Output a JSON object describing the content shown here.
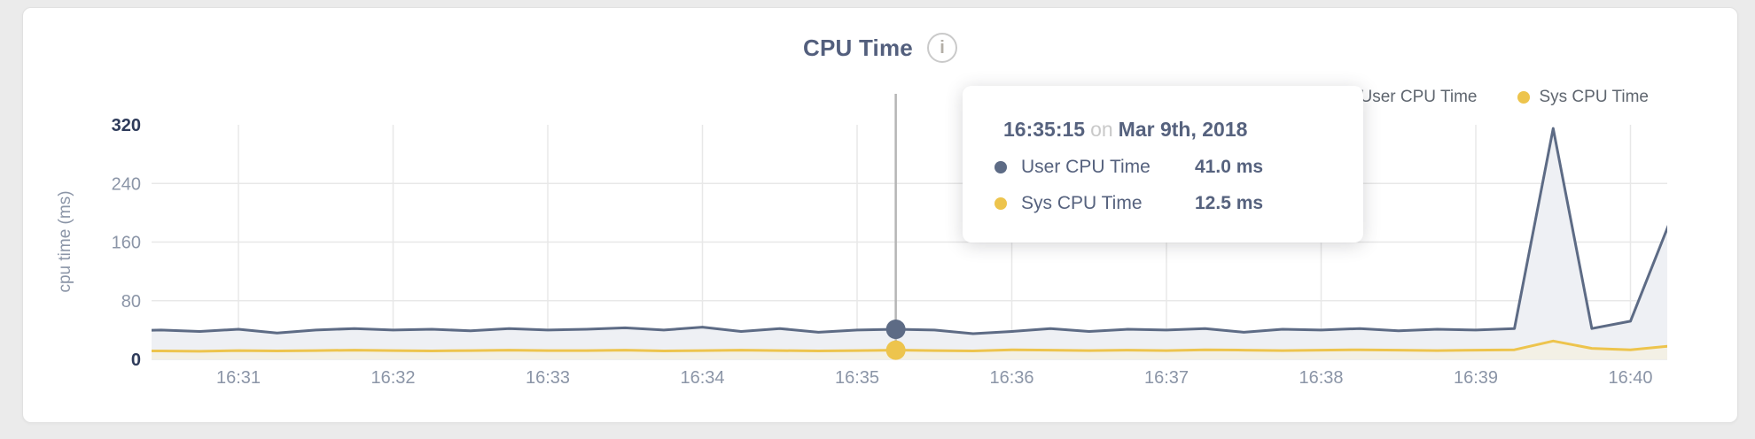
{
  "header": {
    "title": "CPU Time",
    "info_icon": "i"
  },
  "legend": {
    "items": [
      {
        "label": "User CPU Time",
        "color": "#5d6b85"
      },
      {
        "label": "Sys CPU Time",
        "color": "#edc44d"
      }
    ]
  },
  "tooltip": {
    "time": "16:35:15",
    "connector": "on",
    "date": "Mar 9th, 2018",
    "rows": [
      {
        "label": "User CPU Time",
        "value": "41.0 ms",
        "color": "#5d6b85"
      },
      {
        "label": "Sys CPU Time",
        "value": "12.5 ms",
        "color": "#edc44d"
      }
    ]
  },
  "chart_data": {
    "type": "area",
    "title": "CPU Time",
    "xlabel": "",
    "ylabel": "cpu time (ms)",
    "ylim": [
      0,
      320
    ],
    "y_ticks": [
      0,
      80,
      160,
      240,
      320
    ],
    "x_ticks": [
      "16:31",
      "16:32",
      "16:33",
      "16:34",
      "16:35",
      "16:36",
      "16:37",
      "16:38",
      "16:39",
      "16:40"
    ],
    "grid": true,
    "legend_position": "top-right",
    "x": [
      "16:30:15",
      "16:30:30",
      "16:30:45",
      "16:31:00",
      "16:31:15",
      "16:31:30",
      "16:31:45",
      "16:32:00",
      "16:32:15",
      "16:32:30",
      "16:32:45",
      "16:33:00",
      "16:33:15",
      "16:33:30",
      "16:33:45",
      "16:34:00",
      "16:34:15",
      "16:34:30",
      "16:34:45",
      "16:35:00",
      "16:35:15",
      "16:35:30",
      "16:35:45",
      "16:36:00",
      "16:36:15",
      "16:36:30",
      "16:36:45",
      "16:37:00",
      "16:37:15",
      "16:37:30",
      "16:37:45",
      "16:38:00",
      "16:38:15",
      "16:38:30",
      "16:38:45",
      "16:39:00",
      "16:39:15",
      "16:39:30",
      "16:39:45",
      "16:40:00",
      "16:40:15"
    ],
    "series": [
      {
        "name": "User CPU Time",
        "color": "#5d6b85",
        "fill": "#eef0f4",
        "values": [
          39,
          40,
          38,
          41,
          36,
          40,
          42,
          40,
          41,
          39,
          42,
          40,
          41,
          43,
          40,
          44,
          38,
          42,
          37,
          40,
          41,
          40,
          35,
          38,
          42,
          38,
          41,
          40,
          42,
          37,
          41,
          40,
          42,
          39,
          41,
          40,
          42,
          315,
          42,
          52,
          185
        ]
      },
      {
        "name": "Sys CPU Time",
        "color": "#edc44d",
        "fill": "#f3f0e5",
        "values": [
          11.5,
          11.5,
          11,
          12,
          11.5,
          12,
          12.5,
          12,
          11.5,
          12,
          12.5,
          12,
          12,
          12.5,
          11.5,
          12,
          12.5,
          12,
          11.5,
          12,
          12.5,
          12,
          11.5,
          13,
          12.5,
          12,
          12.5,
          12,
          13,
          12.5,
          12,
          12.5,
          13,
          12.5,
          12,
          12.5,
          13,
          25,
          15,
          13,
          18
        ]
      }
    ],
    "hover": {
      "x": "16:35:15",
      "date": "Mar 9th, 2018",
      "user_ms": 41.0,
      "sys_ms": 12.5
    }
  }
}
